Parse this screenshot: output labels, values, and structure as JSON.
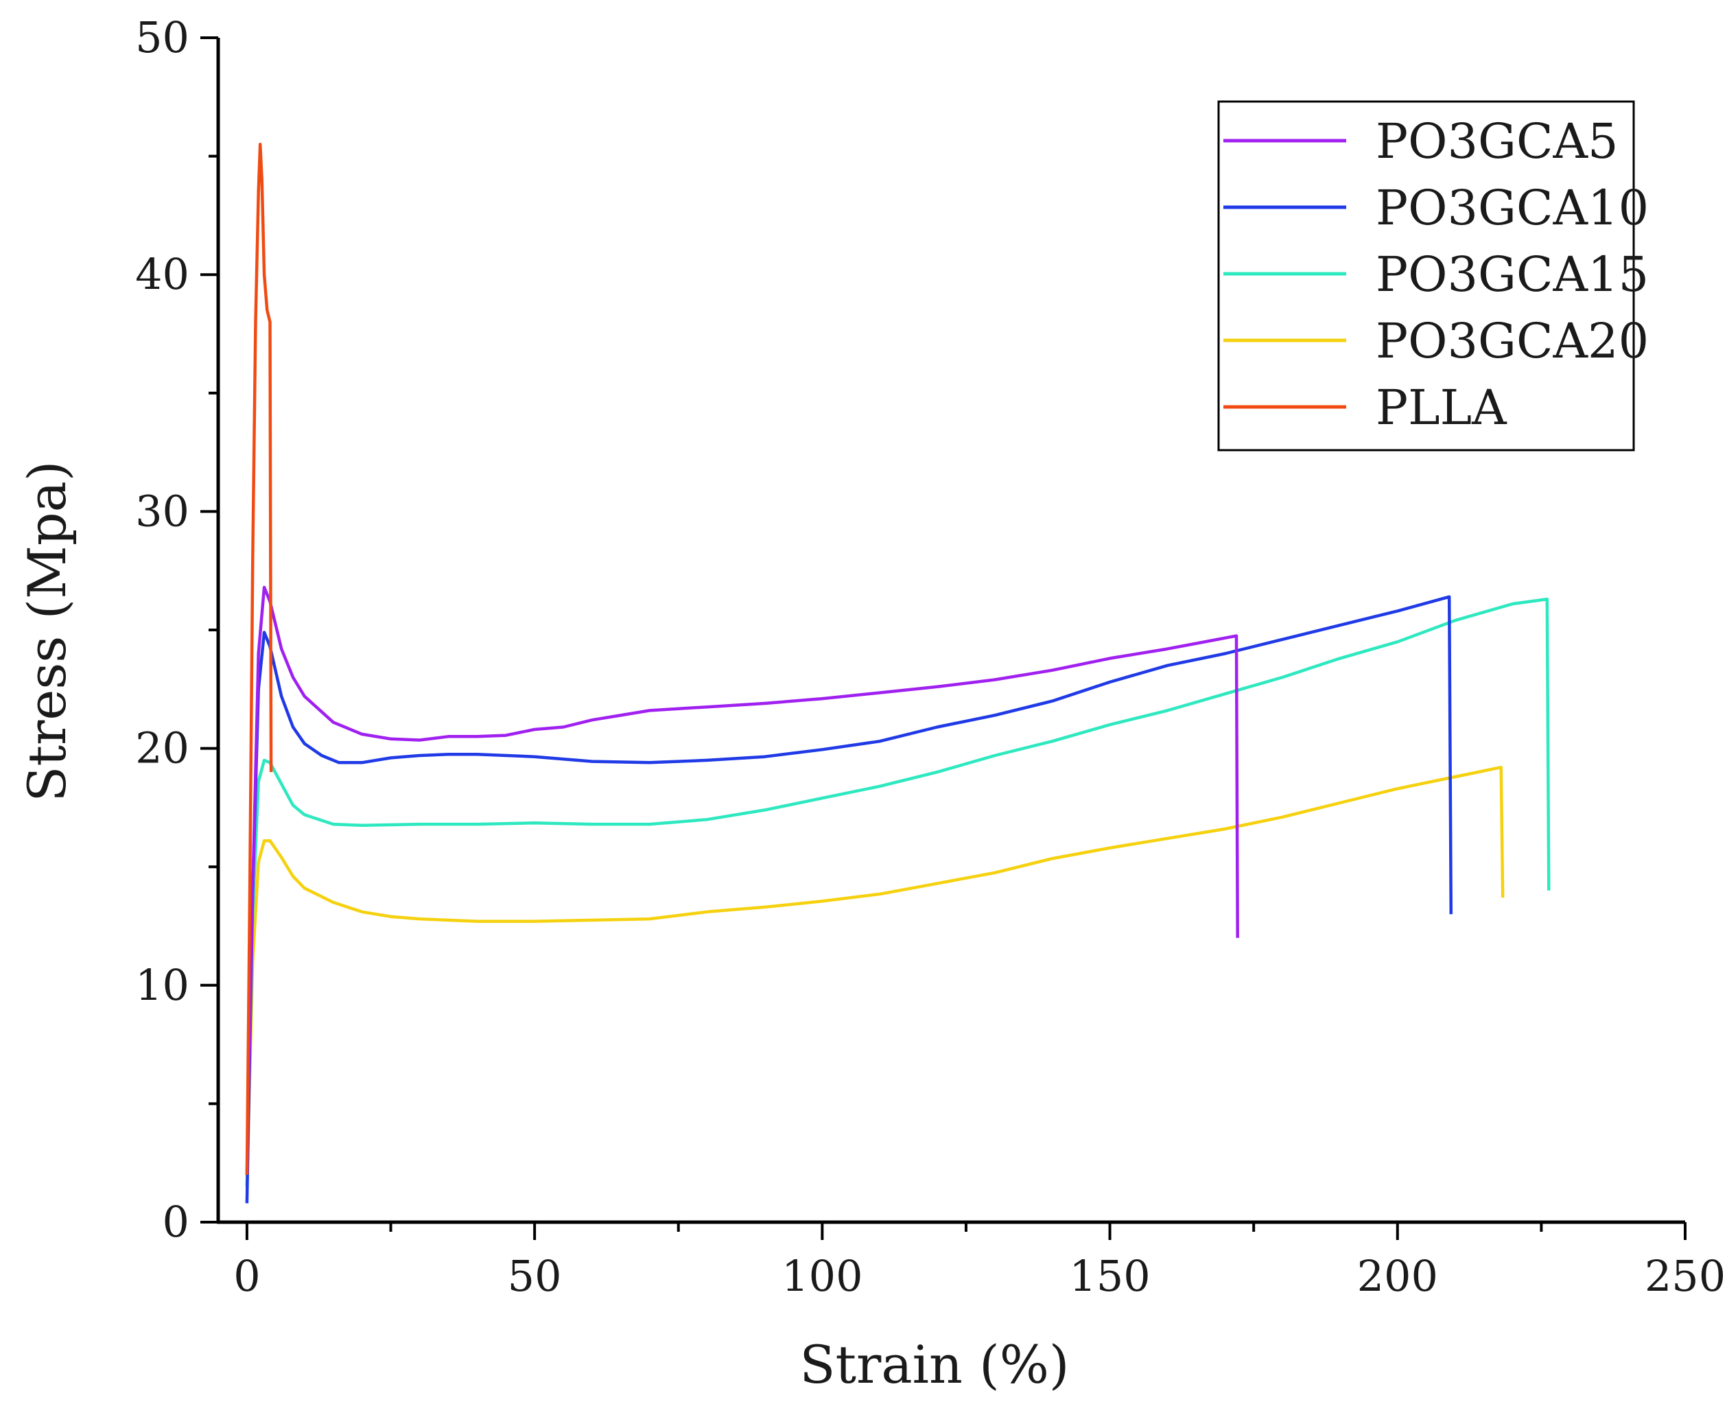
{
  "chart_data": {
    "type": "line",
    "title": "",
    "xlabel": "Strain (%)",
    "ylabel": "Stress (Mpa)",
    "xlim": [
      -5,
      250
    ],
    "ylim": [
      0,
      50
    ],
    "xticks": [
      0,
      50,
      100,
      150,
      200,
      250
    ],
    "yticks": [
      0,
      10,
      20,
      30,
      40,
      50
    ],
    "xtick_labels": [
      "0",
      "50",
      "100",
      "150",
      "200",
      "250"
    ],
    "ytick_labels": [
      "0",
      "10",
      "20",
      "30",
      "40",
      "50"
    ],
    "grid": false,
    "legend_position": "top-right",
    "series": [
      {
        "name": "PO3GCA5",
        "color": "#a020f0",
        "points": [
          [
            0,
            2
          ],
          [
            1,
            14
          ],
          [
            2,
            24
          ],
          [
            3,
            26.8
          ],
          [
            4,
            26.2
          ],
          [
            6,
            24.2
          ],
          [
            8,
            23
          ],
          [
            10,
            22.2
          ],
          [
            15,
            21.1
          ],
          [
            20,
            20.6
          ],
          [
            25,
            20.4
          ],
          [
            30,
            20.35
          ],
          [
            35,
            20.5
          ],
          [
            40,
            20.5
          ],
          [
            45,
            20.55
          ],
          [
            50,
            20.8
          ],
          [
            55,
            20.9
          ],
          [
            60,
            21.2
          ],
          [
            70,
            21.6
          ],
          [
            80,
            21.75
          ],
          [
            90,
            21.9
          ],
          [
            100,
            22.1
          ],
          [
            110,
            22.35
          ],
          [
            120,
            22.6
          ],
          [
            130,
            22.9
          ],
          [
            140,
            23.3
          ],
          [
            150,
            23.8
          ],
          [
            160,
            24.2
          ],
          [
            172,
            24.75
          ],
          [
            172.2,
            12
          ]
        ]
      },
      {
        "name": "PO3GCA10",
        "color": "#1f3ae6",
        "points": [
          [
            0,
            0.8
          ],
          [
            1,
            14
          ],
          [
            2,
            22.5
          ],
          [
            3,
            24.9
          ],
          [
            4,
            24.3
          ],
          [
            6,
            22.2
          ],
          [
            8,
            20.9
          ],
          [
            10,
            20.2
          ],
          [
            13,
            19.7
          ],
          [
            16,
            19.4
          ],
          [
            20,
            19.4
          ],
          [
            25,
            19.6
          ],
          [
            30,
            19.7
          ],
          [
            35,
            19.75
          ],
          [
            40,
            19.75
          ],
          [
            50,
            19.65
          ],
          [
            60,
            19.45
          ],
          [
            70,
            19.4
          ],
          [
            80,
            19.5
          ],
          [
            90,
            19.65
          ],
          [
            100,
            19.95
          ],
          [
            110,
            20.3
          ],
          [
            120,
            20.9
          ],
          [
            130,
            21.4
          ],
          [
            140,
            22.0
          ],
          [
            150,
            22.8
          ],
          [
            160,
            23.5
          ],
          [
            170,
            24.0
          ],
          [
            180,
            24.6
          ],
          [
            190,
            25.2
          ],
          [
            200,
            25.8
          ],
          [
            209,
            26.4
          ],
          [
            209.3,
            13
          ]
        ]
      },
      {
        "name": "PO3GCA15",
        "color": "#2ee8c0",
        "points": [
          [
            0,
            1.5
          ],
          [
            1,
            13
          ],
          [
            2,
            18.6
          ],
          [
            3,
            19.5
          ],
          [
            4,
            19.4
          ],
          [
            6,
            18.5
          ],
          [
            8,
            17.6
          ],
          [
            10,
            17.2
          ],
          [
            15,
            16.8
          ],
          [
            20,
            16.75
          ],
          [
            30,
            16.8
          ],
          [
            40,
            16.8
          ],
          [
            50,
            16.85
          ],
          [
            60,
            16.8
          ],
          [
            70,
            16.8
          ],
          [
            80,
            17.0
          ],
          [
            90,
            17.4
          ],
          [
            100,
            17.9
          ],
          [
            110,
            18.4
          ],
          [
            120,
            19.0
          ],
          [
            130,
            19.7
          ],
          [
            140,
            20.3
          ],
          [
            150,
            21.0
          ],
          [
            160,
            21.6
          ],
          [
            170,
            22.3
          ],
          [
            180,
            23.0
          ],
          [
            190,
            23.8
          ],
          [
            200,
            24.5
          ],
          [
            210,
            25.4
          ],
          [
            220,
            26.1
          ],
          [
            226,
            26.3
          ],
          [
            226.3,
            14
          ]
        ]
      },
      {
        "name": "PO3GCA20",
        "color": "#f5d10f",
        "points": [
          [
            0,
            1.5
          ],
          [
            1,
            11
          ],
          [
            2,
            15.2
          ],
          [
            3,
            16.1
          ],
          [
            4,
            16.1
          ],
          [
            6,
            15.4
          ],
          [
            8,
            14.6
          ],
          [
            10,
            14.1
          ],
          [
            15,
            13.5
          ],
          [
            20,
            13.1
          ],
          [
            25,
            12.9
          ],
          [
            30,
            12.8
          ],
          [
            40,
            12.7
          ],
          [
            50,
            12.7
          ],
          [
            60,
            12.75
          ],
          [
            70,
            12.8
          ],
          [
            80,
            13.1
          ],
          [
            90,
            13.3
          ],
          [
            100,
            13.55
          ],
          [
            110,
            13.85
          ],
          [
            120,
            14.3
          ],
          [
            130,
            14.75
          ],
          [
            140,
            15.35
          ],
          [
            150,
            15.8
          ],
          [
            160,
            16.2
          ],
          [
            170,
            16.6
          ],
          [
            180,
            17.1
          ],
          [
            190,
            17.7
          ],
          [
            200,
            18.3
          ],
          [
            210,
            18.8
          ],
          [
            218,
            19.2
          ],
          [
            218.3,
            13.7
          ]
        ]
      },
      {
        "name": "PLLA",
        "color": "#f04b12",
        "points": [
          [
            0,
            2
          ],
          [
            0.5,
            14
          ],
          [
            1,
            28
          ],
          [
            1.5,
            38
          ],
          [
            2,
            43.5
          ],
          [
            2.3,
            45.5
          ],
          [
            2.6,
            44
          ],
          [
            3,
            40
          ],
          [
            3.5,
            38.5
          ],
          [
            4,
            38
          ],
          [
            4.2,
            19
          ]
        ]
      }
    ]
  }
}
